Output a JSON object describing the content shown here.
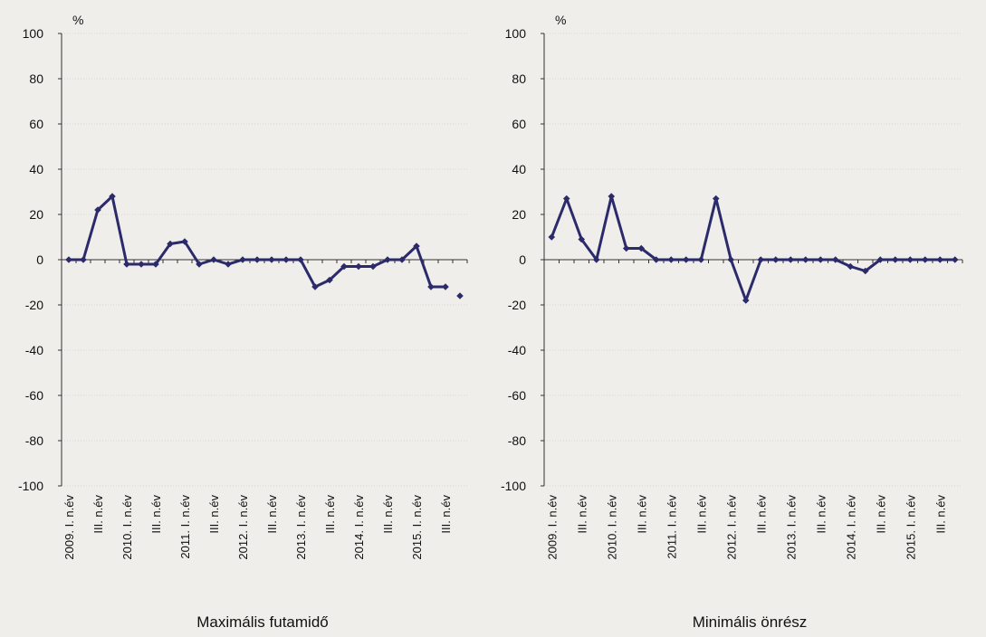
{
  "chart_data": [
    {
      "type": "line",
      "title": "Maximális futamidő",
      "ylabel": "%",
      "ylim": [
        -100,
        100
      ],
      "yticks": [
        100,
        80,
        60,
        40,
        20,
        0,
        -20,
        -40,
        -60,
        -80,
        -100
      ],
      "categories": [
        "2009. I. n.év",
        "",
        "III. n.év",
        "",
        "2010. I. n.év",
        "",
        "III. n.év",
        "",
        "2011. I. n.év",
        "",
        "III. n.év",
        "",
        "2012. I. n.év",
        "",
        "III. n.év",
        "",
        "2013. I. n.év",
        "",
        "III. n.év",
        "",
        "2014. I. n.év",
        "",
        "III. n.év",
        "",
        "2015. I. n.év",
        "",
        "III. n.év",
        ""
      ],
      "series": [
        {
          "color": "#2b2a6b",
          "values": [
            0,
            0,
            22,
            28,
            -2,
            -2,
            -2,
            7,
            8,
            -2,
            0,
            -2,
            0,
            0,
            0,
            0,
            0,
            -12,
            -9,
            -3,
            -3,
            -3,
            0,
            0,
            6,
            -12,
            -12,
            -16
          ]
        }
      ],
      "grid": true,
      "legend": "none"
    },
    {
      "type": "line",
      "title": "Minimális önrész",
      "ylabel": "%",
      "ylim": [
        -100,
        100
      ],
      "yticks": [
        100,
        80,
        60,
        40,
        20,
        0,
        -20,
        -40,
        -60,
        -80,
        -100
      ],
      "categories": [
        "2009. I. n.év",
        "",
        "III. n.év",
        "",
        "2010. I. n.év",
        "",
        "III. n.év",
        "",
        "2011. I. n.év",
        "",
        "III. n.év",
        "",
        "2012. I. n.év",
        "",
        "III. n.év",
        "",
        "2013. I. n.év",
        "",
        "III. n.év",
        "",
        "2014. I. n.év",
        "",
        "III. n.év",
        "",
        "2015. I. n.év",
        "",
        "III. n.év",
        ""
      ],
      "series": [
        {
          "color": "#2b2a6b",
          "values": [
            10,
            27,
            9,
            0,
            28,
            5,
            5,
            0,
            0,
            0,
            0,
            27,
            0,
            -18,
            0,
            0,
            0,
            0,
            0,
            0,
            -3,
            -5,
            0,
            0,
            0,
            0,
            0,
            0
          ]
        }
      ],
      "grid": true,
      "legend": "none"
    }
  ]
}
